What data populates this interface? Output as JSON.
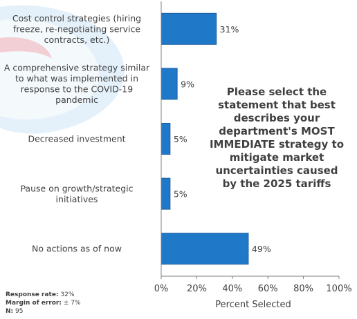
{
  "chart_data": {
    "type": "bar",
    "orientation": "horizontal",
    "categories": [
      [
        "Cost control strategies (hiring",
        "freeze, re-negotiating service",
        "contracts, etc.)"
      ],
      [
        "A comprehensive strategy similar",
        "to what was implemented in",
        "response to the COVID-19",
        "pandemic"
      ],
      [
        "Decreased investment"
      ],
      [
        "Pause on growth/strategic",
        "initiatives"
      ],
      [
        "No actions as of now"
      ]
    ],
    "values": [
      31,
      9,
      5,
      5,
      49
    ],
    "data_labels": [
      "31%",
      "9%",
      "5%",
      "5%",
      "49%"
    ],
    "xlabel": "Percent Selected",
    "xlim": [
      0,
      100
    ],
    "x_ticks": [
      "0%",
      "20%",
      "40%",
      "60%",
      "80%",
      "100%"
    ],
    "bar_color": "#1f78c8",
    "grid": false
  },
  "question": "Please select the statement that best describes your department's MOST IMMEDIATE strategy to mitigate market uncertainties caused by the 2025 tariffs",
  "footer": {
    "response_rate_label": "Response rate:",
    "response_rate_value": "32%",
    "margin_label": "Margin of error:",
    "margin_value": "± 7%",
    "n_label": "N:",
    "n_value": "95"
  }
}
